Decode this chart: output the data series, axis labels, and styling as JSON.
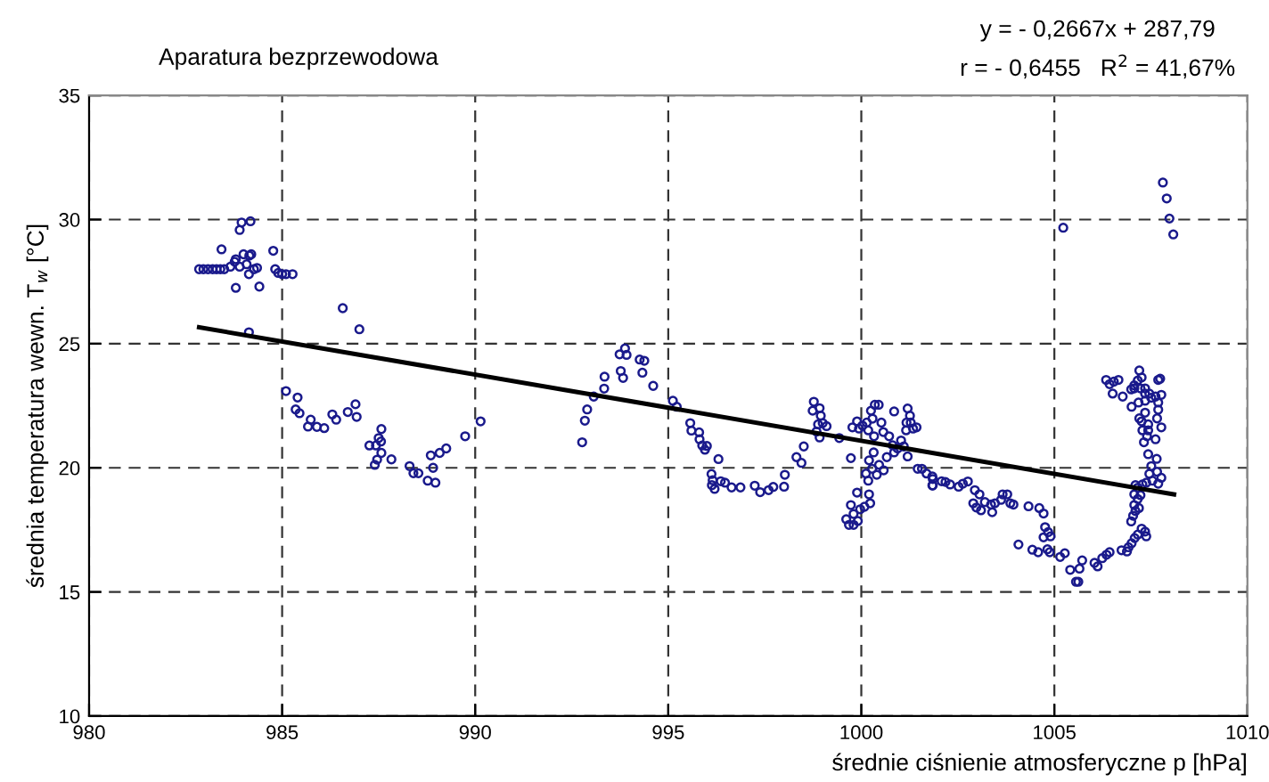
{
  "chart_data": {
    "type": "scatter",
    "title": "Aparatura bezprzewodowa",
    "xlabel": "średnie ciśnienie atmosferyczne p [hPa]",
    "ylabel": "średnia temperatura wewn. T$_{w}$ [°C]",
    "annotations": [
      "y = - 0,2667x + 287,79",
      "r = - 0,6455   R$^{2}$ = 41,67%"
    ],
    "xlim": [
      980,
      1010
    ],
    "ylim": [
      10,
      35
    ],
    "xticks": [
      980,
      985,
      990,
      995,
      1000,
      1005,
      1010
    ],
    "yticks": [
      10,
      15,
      20,
      25,
      30,
      35
    ],
    "grid": true,
    "legend": false,
    "line_style": "dashed",
    "series": [
      {
        "color": "#1a1a8c",
        "marker": "circle",
        "x": [
          982.85,
          982.96,
          983.08,
          983.2,
          983.3,
          983.4,
          983.43,
          983.5,
          983.66,
          983.77,
          983.8,
          983.8,
          983.9,
          983.95,
          984.18,
          983.9,
          984.0,
          984.08,
          984.14,
          984.15,
          984.2,
          984.27,
          984.35,
          984.41,
          984.14,
          984.77,
          984.82,
          984.9,
          985.0,
          985.1,
          985.27,
          986.57,
          987.0,
          985.1,
          985.4,
          985.35,
          985.45,
          985.74,
          985.67,
          985.9,
          986.09,
          986.3,
          986.4,
          986.7,
          986.9,
          986.93,
          987.57,
          987.5,
          987.26,
          987.43,
          987.56,
          987.57,
          987.46,
          987.4,
          987.83,
          988.3,
          988.4,
          988.53,
          988.77,
          988.97,
          988.91,
          988.85,
          989.08,
          989.25,
          989.74,
          990.14,
          992.77,
          992.84,
          992.9,
          993.07,
          993.34,
          993.35,
          993.77,
          993.83,
          993.74,
          993.88,
          993.92,
          994.26,
          994.38,
          994.33,
          994.61,
          995.12,
          995.22,
          995.57,
          995.6,
          995.8,
          995.81,
          995.88,
          996.0,
          995.95,
          996.3,
          996.12,
          996.15,
          996.13,
          996.2,
          996.36,
          996.47,
          996.64,
          996.87,
          997.24,
          997.38,
          997.6,
          997.72,
          998.0,
          998.02,
          998.32,
          998.45,
          998.51,
          998.77,
          998.74,
          998.92,
          998.95,
          998.88,
          999.0,
          999.1,
          998.84,
          998.92,
          999.43,
          999.73,
          999.89,
          999.73,
          999.8,
          999.61,
          999.68,
          999.8,
          999.91,
          999.97,
          1000.08,
          1000.23,
          1000.2,
          1000.18,
          1000.12,
          1000.2,
          1000.28,
          1000.4,
          1000.46,
          1000.58,
          1000.66,
          1000.32,
          1000.33,
          1000.18,
          999.94,
          999.77,
          999.89,
          1000.03,
          1000.14,
          1000.29,
          1000.25,
          1000.35,
          1000.45,
          1000.52,
          1000.57,
          1000.72,
          1000.85,
          1000.81,
          1000.85,
          1000.94,
          1001.03,
          1001.1,
          1001.2,
          1001.16,
          1001.2,
          1001.26,
          1001.28,
          1001.34,
          1001.43,
          1001.17,
          1001.46,
          1001.57,
          1001.69,
          1001.84,
          1001.84,
          1002.08,
          1001.85,
          1001.85,
          1002.18,
          1002.3,
          1002.52,
          1002.63,
          1002.76,
          1002.94,
          1003.06,
          1002.9,
          1002.98,
          1003.1,
          1003.2,
          1003.36,
          1003.39,
          1003.46,
          1003.62,
          1003.66,
          1003.78,
          1003.86,
          1003.94,
          1004.07,
          1004.33,
          1004.43,
          1004.58,
          1004.61,
          1004.72,
          1004.76,
          1004.72,
          1004.84,
          1004.9,
          1004.82,
          1004.88,
          1005.15,
          1005.27,
          1005.23,
          1005.41,
          1005.56,
          1005.62,
          1005.65,
          1005.72,
          1006.04,
          1006.12,
          1006.24,
          1006.35,
          1006.43,
          1006.74,
          1006.88,
          1006.92,
          1007.0,
          1007.08,
          1007.16,
          1007.26,
          1007.35,
          1007.38,
          1006.99,
          1007.04,
          1007.1,
          1007.07,
          1007.19,
          1007.16,
          1007.23,
          1007.07,
          1007.16,
          1007.28,
          1007.1,
          1007.38,
          1007.54,
          1007.69,
          1007.77,
          1007.66,
          1007.46,
          1007.51,
          1007.65,
          1007.43,
          1007.32,
          1007.4,
          1007.43,
          1007.28,
          1007.62,
          1007.26,
          1007.43,
          1007.35,
          1007.2,
          1007.0,
          1007.18,
          1007.35,
          1007.69,
          1007.66,
          1007.77,
          1007.69,
          1007.62,
          1007.46,
          1007.77,
          1007.51,
          1007.35,
          1007.23,
          1007.07,
          1007.16,
          1007.07,
          1007.2,
          1007.26,
          1006.99,
          1006.77,
          1006.51,
          1006.34,
          1006.43,
          1006.54,
          1006.66,
          1007.69,
          1007.74,
          1007.35,
          1007.81,
          1007.91,
          1007.98,
          1008.08
        ],
        "values": [
          28.0,
          28.0,
          28.0,
          28.0,
          28.0,
          28.0,
          28.8,
          28.0,
          28.1,
          28.3,
          28.4,
          27.25,
          29.58,
          29.88,
          29.93,
          28.1,
          28.6,
          28.2,
          27.8,
          28.55,
          28.6,
          28.0,
          28.05,
          27.3,
          25.46,
          28.74,
          28.0,
          27.85,
          27.8,
          27.8,
          27.8,
          26.43,
          25.58,
          23.09,
          22.83,
          22.35,
          22.2,
          21.94,
          21.66,
          21.65,
          21.6,
          22.15,
          21.94,
          22.25,
          22.56,
          22.05,
          21.56,
          21.2,
          20.9,
          20.9,
          21.06,
          20.6,
          20.33,
          20.12,
          20.34,
          20.07,
          19.78,
          19.78,
          19.48,
          19.4,
          20.0,
          20.5,
          20.6,
          20.78,
          21.27,
          21.87,
          21.03,
          21.9,
          22.35,
          22.87,
          23.19,
          23.67,
          23.9,
          23.62,
          24.57,
          24.81,
          24.55,
          24.36,
          24.31,
          23.83,
          23.3,
          22.7,
          22.46,
          21.8,
          21.5,
          21.43,
          21.15,
          20.9,
          20.88,
          20.73,
          20.35,
          19.75,
          19.5,
          19.3,
          19.15,
          19.46,
          19.4,
          19.21,
          19.21,
          19.28,
          19.02,
          19.1,
          19.23,
          19.24,
          19.72,
          20.43,
          20.2,
          20.86,
          22.66,
          22.3,
          22.4,
          22.1,
          21.75,
          21.8,
          21.68,
          21.46,
          21.22,
          21.2,
          20.39,
          19.0,
          18.5,
          18.14,
          17.93,
          17.7,
          17.7,
          17.86,
          18.33,
          18.43,
          18.57,
          18.93,
          19.48,
          19.77,
          20.3,
          19.96,
          19.72,
          20.12,
          19.9,
          20.43,
          20.62,
          21.27,
          21.51,
          21.58,
          21.63,
          21.87,
          21.7,
          21.82,
          21.98,
          22.3,
          22.54,
          22.54,
          21.82,
          21.44,
          21.27,
          22.27,
          20.91,
          20.62,
          20.78,
          21.1,
          20.86,
          20.46,
          21.51,
          22.39,
          22.1,
          21.82,
          21.58,
          21.63,
          21.82,
          19.96,
          19.96,
          19.77,
          19.65,
          19.29,
          19.46,
          19.55,
          19.29,
          19.43,
          19.33,
          19.24,
          19.36,
          19.45,
          19.1,
          18.93,
          18.57,
          18.4,
          18.29,
          18.62,
          18.52,
          18.21,
          18.57,
          18.71,
          18.93,
          18.93,
          18.57,
          18.52,
          16.91,
          18.45,
          16.7,
          16.6,
          18.38,
          18.16,
          17.61,
          17.2,
          17.41,
          17.24,
          16.72,
          16.6,
          16.41,
          16.56,
          29.67,
          15.89,
          15.41,
          15.41,
          15.94,
          16.27,
          16.17,
          16.03,
          16.36,
          16.5,
          16.6,
          16.68,
          16.63,
          16.8,
          16.96,
          17.17,
          17.31,
          17.55,
          17.43,
          17.24,
          17.84,
          18.07,
          18.26,
          18.5,
          18.38,
          18.74,
          18.9,
          18.93,
          19.2,
          19.33,
          19.3,
          19.4,
          19.48,
          19.36,
          19.6,
          19.84,
          19.76,
          20.07,
          20.36,
          20.55,
          21.03,
          21.27,
          21.51,
          21.51,
          21.15,
          21.87,
          21.75,
          22.22,
          21.99,
          22.46,
          22.63,
          22.7,
          22.63,
          21.99,
          21.63,
          22.34,
          22.87,
          22.99,
          22.94,
          22.82,
          23.2,
          23.2,
          23.2,
          23.52,
          23.32,
          23.92,
          23.64,
          23.16,
          22.87,
          22.99,
          23.54,
          23.37,
          23.47,
          23.54,
          23.54,
          23.59,
          22.99,
          31.49,
          30.85,
          30.04,
          29.4
        ]
      },
      {
        "type": "line",
        "color": "#000000",
        "marker": "none",
        "line_style": "solid",
        "x": [
          982.85,
          1008.1
        ],
        "values": [
          25.66,
          18.93
        ]
      }
    ]
  }
}
